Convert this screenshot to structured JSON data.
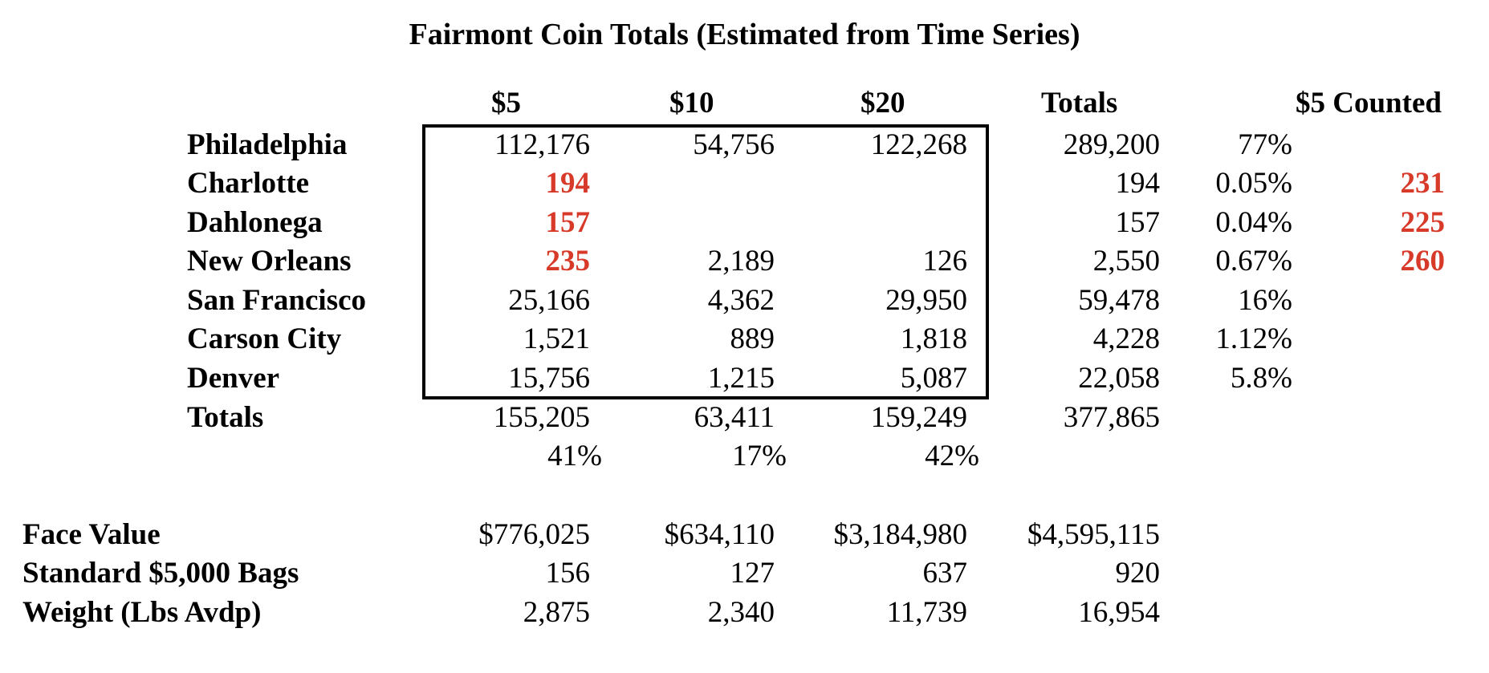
{
  "title": "Fairmont Coin Totals (Estimated from Time Series)",
  "headers": {
    "c5": "$5",
    "c10": "$10",
    "c20": "$20",
    "totals": "Totals",
    "counted": "$5 Counted"
  },
  "accent_color": "#d83a2a",
  "rows": [
    {
      "name": "Philadelphia",
      "c5": "112,176",
      "c5_red": false,
      "c10": "54,756",
      "c20": "122,268",
      "total": "289,200",
      "pct": "77%",
      "counted": ""
    },
    {
      "name": "Charlotte",
      "c5": "194",
      "c5_red": true,
      "c10": "",
      "c20": "",
      "total": "194",
      "pct": "0.05%",
      "counted": "231"
    },
    {
      "name": "Dahlonega",
      "c5": "157",
      "c5_red": true,
      "c10": "",
      "c20": "",
      "total": "157",
      "pct": "0.04%",
      "counted": "225"
    },
    {
      "name": "New Orleans",
      "c5": "235",
      "c5_red": true,
      "c10": "2,189",
      "c20": "126",
      "total": "2,550",
      "pct": "0.67%",
      "counted": "260"
    },
    {
      "name": "San Francisco",
      "c5": "25,166",
      "c5_red": false,
      "c10": "4,362",
      "c20": "29,950",
      "total": "59,478",
      "pct": "16%",
      "counted": ""
    },
    {
      "name": "Carson City",
      "c5": "1,521",
      "c5_red": false,
      "c10": "889",
      "c20": "1,818",
      "total": "4,228",
      "pct": "1.12%",
      "counted": ""
    },
    {
      "name": "Denver",
      "c5": "15,756",
      "c5_red": false,
      "c10": "1,215",
      "c20": "5,087",
      "total": "22,058",
      "pct": "5.8%",
      "counted": ""
    }
  ],
  "totals_row": {
    "label": "Totals",
    "c5": "155,205",
    "c10": "63,411",
    "c20": "159,249",
    "total": "377,865"
  },
  "share_row": {
    "c5": "41%",
    "c10": "17%",
    "c20": "42%"
  },
  "summary": [
    {
      "label": "Face Value",
      "c5": "$776,025",
      "c10": "$634,110",
      "c20": "$3,184,980",
      "total": "$4,595,115"
    },
    {
      "label": "Standard $5,000 Bags",
      "c5": "156",
      "c10": "127",
      "c20": "637",
      "total": "920"
    },
    {
      "label": "Weight (Lbs Avdp)",
      "c5": "2,875",
      "c10": "2,340",
      "c20": "11,739",
      "total": "16,954"
    }
  ]
}
